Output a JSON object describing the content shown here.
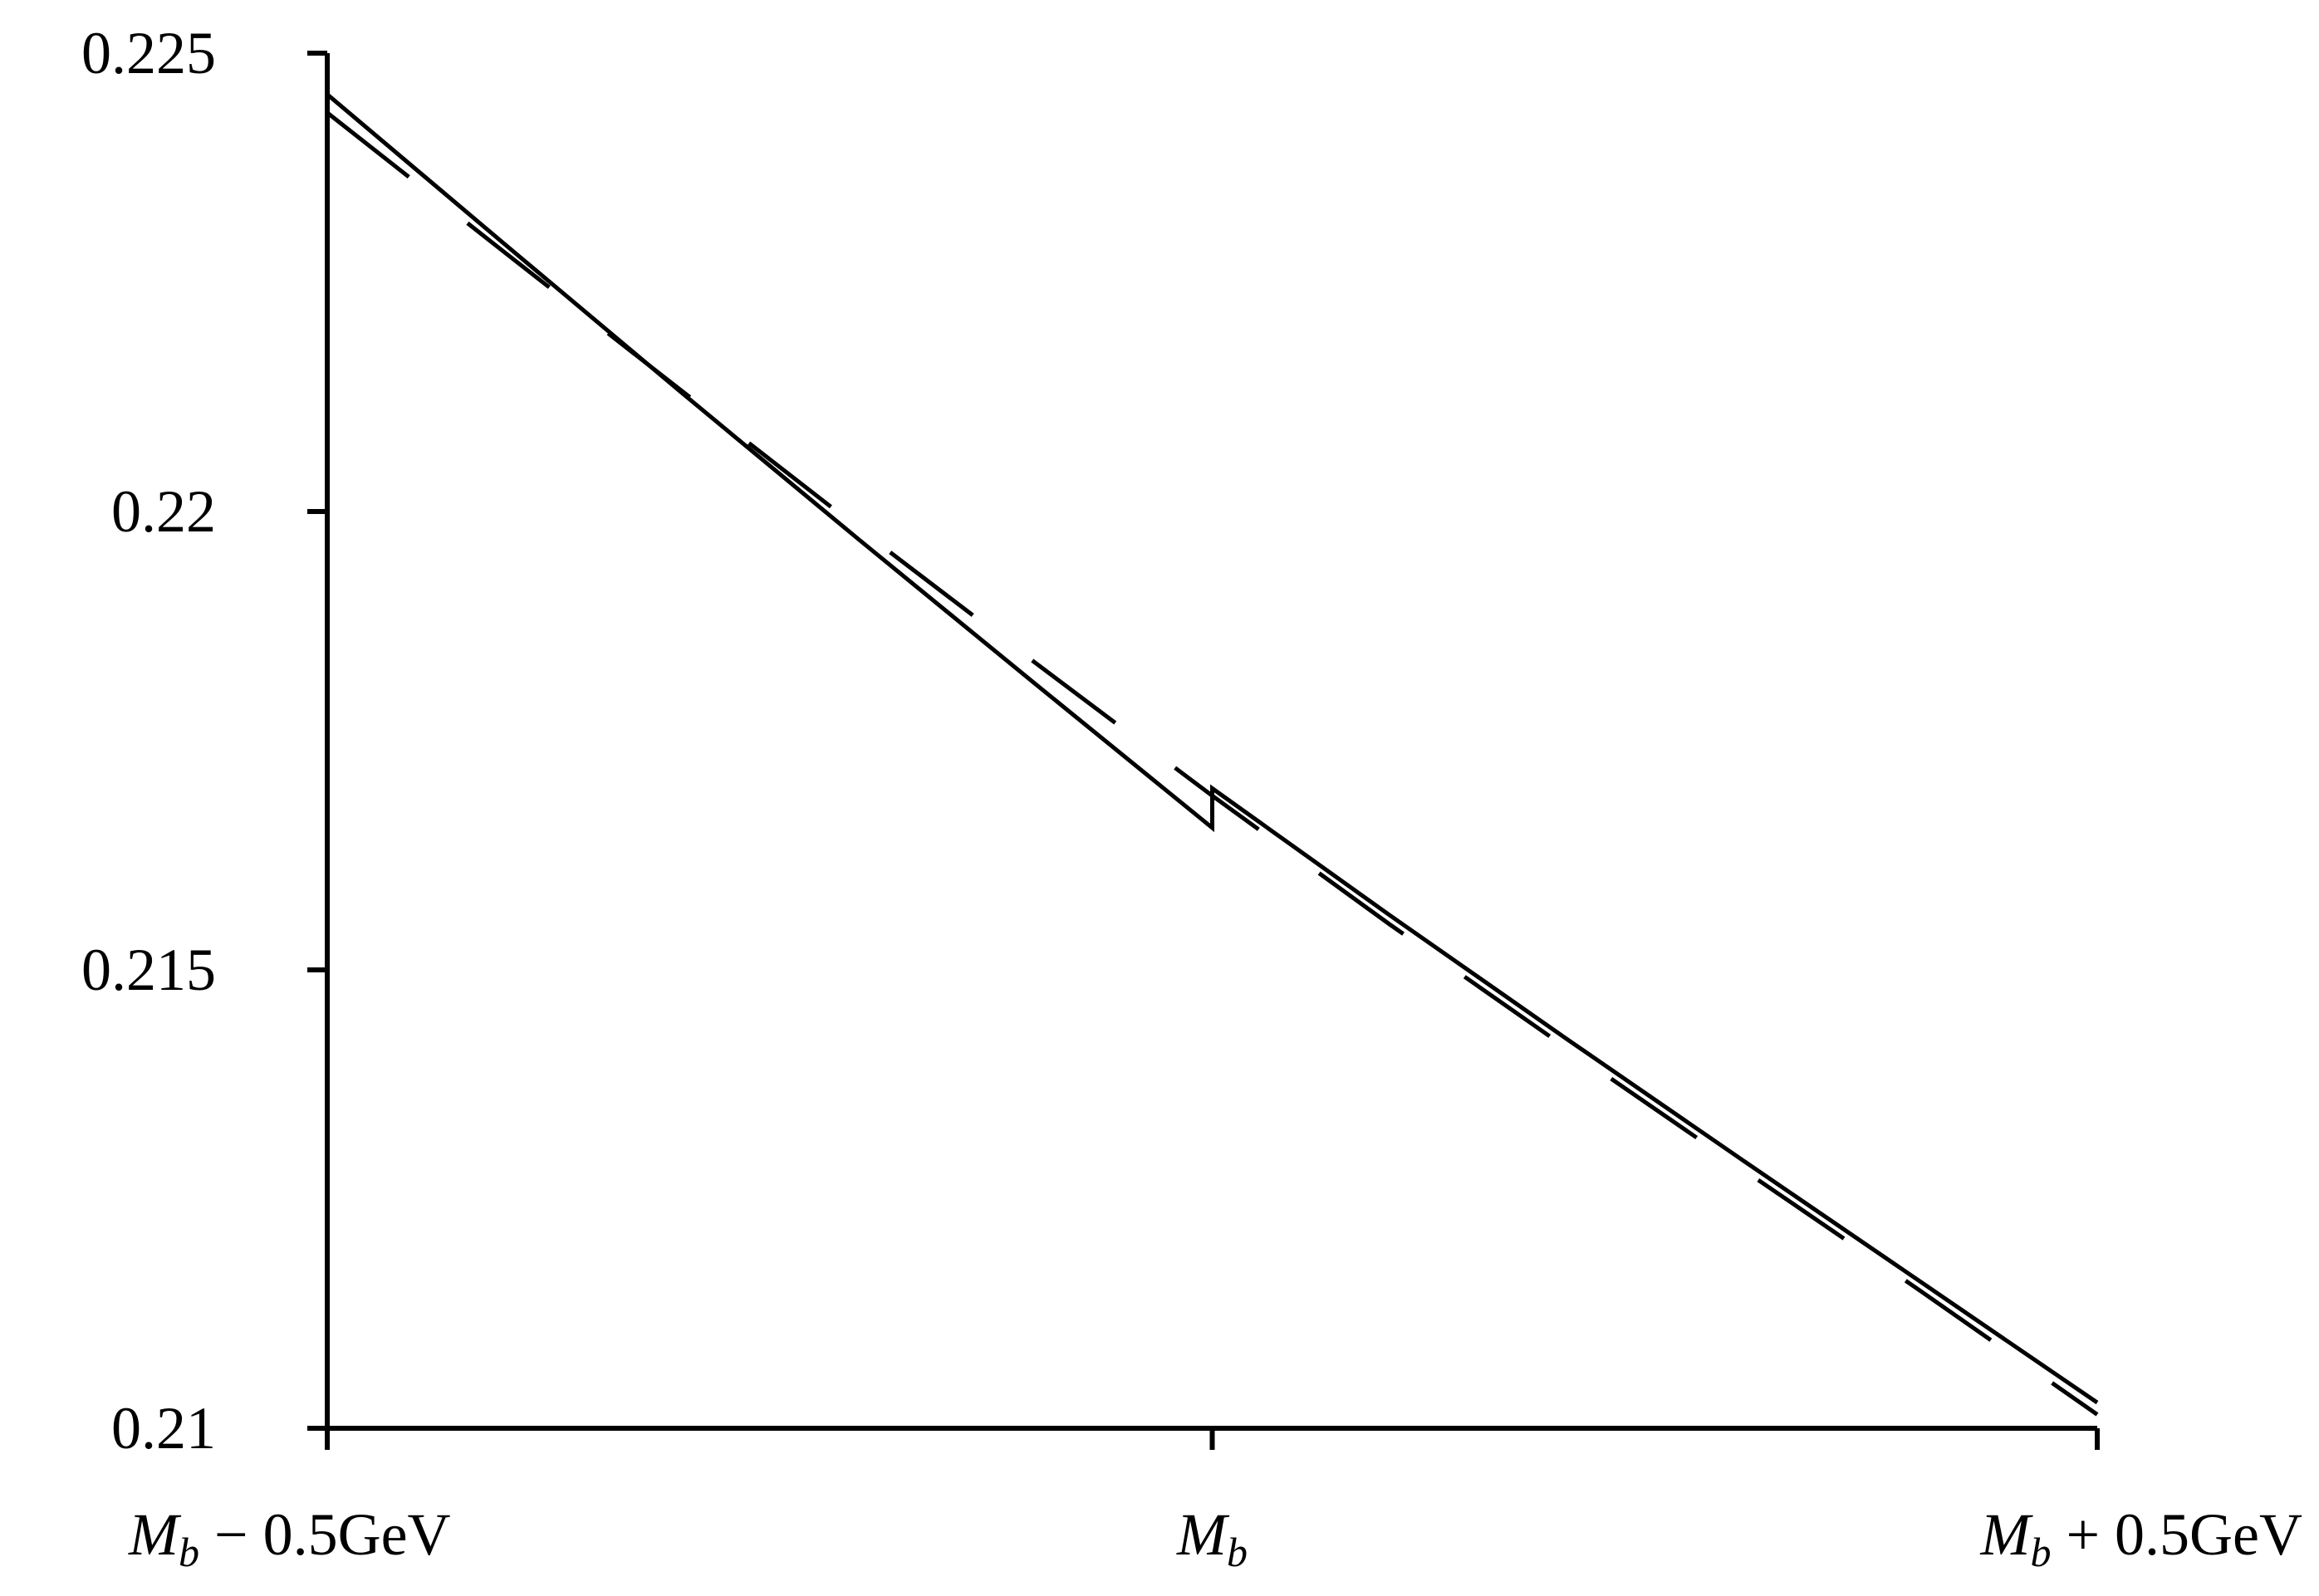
{
  "chart_data": {
    "type": "line",
    "title": "",
    "xlabel": "",
    "ylabel": "",
    "xlim": [
      -0.5,
      0.5
    ],
    "ylim": [
      0.21,
      0.225
    ],
    "x_ticks": [
      {
        "value": -0.5,
        "label_main": "M",
        "label_sub": "b",
        "label_rest": " − 0.5GeV"
      },
      {
        "value": 0.0,
        "label_main": "M",
        "label_sub": "b",
        "label_rest": ""
      },
      {
        "value": 0.5,
        "label_main": "M",
        "label_sub": "b",
        "label_rest": " + 0.5GeV"
      }
    ],
    "y_ticks": [
      {
        "value": 0.21,
        "label": "0.21"
      },
      {
        "value": 0.215,
        "label": "0.215"
      },
      {
        "value": 0.22,
        "label": "0.22"
      },
      {
        "value": 0.225,
        "label": "0.225"
      }
    ],
    "grid": false,
    "legend": "none",
    "series": [
      {
        "style": "solid",
        "segments": [
          {
            "x": [
              -0.5,
              -0.4,
              -0.3,
              -0.2,
              -0.1,
              0.0
            ],
            "y": [
              0.22455,
              0.22292,
              0.2213,
              0.2197,
              0.21812,
              0.21655
            ]
          },
          {
            "x": [
              0.0,
              0.1,
              0.2,
              0.3,
              0.4,
              0.5
            ],
            "y": [
              0.21698,
              0.2156,
              0.21425,
              0.21292,
              0.2116,
              0.21028
            ]
          }
        ],
        "jump_at_x": 0.0
      },
      {
        "style": "dashed",
        "segments": [
          {
            "x": [
              -0.5,
              -0.4,
              -0.3,
              -0.2,
              -0.1,
              0.0,
              0.1,
              0.2,
              0.3,
              0.4,
              0.5
            ],
            "y": [
              0.22435,
              0.22283,
              0.22132,
              0.21982,
              0.21835,
              0.2169,
              0.2155,
              0.21415,
              0.21282,
              0.2115,
              0.21015
            ]
          }
        ]
      }
    ],
    "colors": {
      "axis": "#000000",
      "line": "#000000",
      "background": "#ffffff"
    }
  }
}
